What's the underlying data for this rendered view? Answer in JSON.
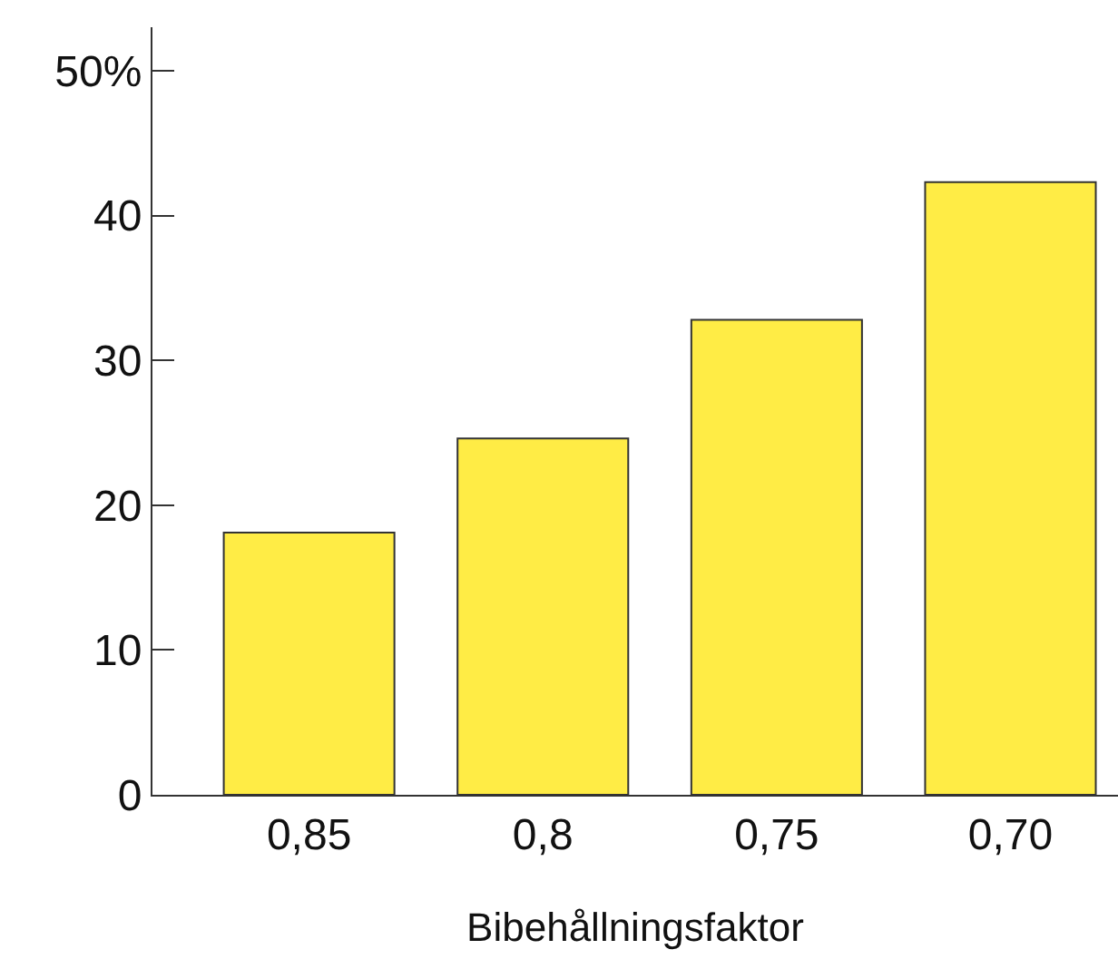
{
  "chart_data": {
    "type": "bar",
    "xlabel": "Bibehållningsfaktor",
    "categories": [
      "0,85",
      "0,8",
      "0,75",
      "0,70"
    ],
    "values": [
      18.1,
      24.6,
      32.8,
      42.3
    ],
    "color": "#ffec45",
    "ylim": [
      0,
      53
    ],
    "yticks": [
      0,
      10,
      20,
      30,
      40,
      {
        "value": 50,
        "label": "50%"
      }
    ],
    "tick_labels": [
      "x",
      "y"
    ]
  }
}
